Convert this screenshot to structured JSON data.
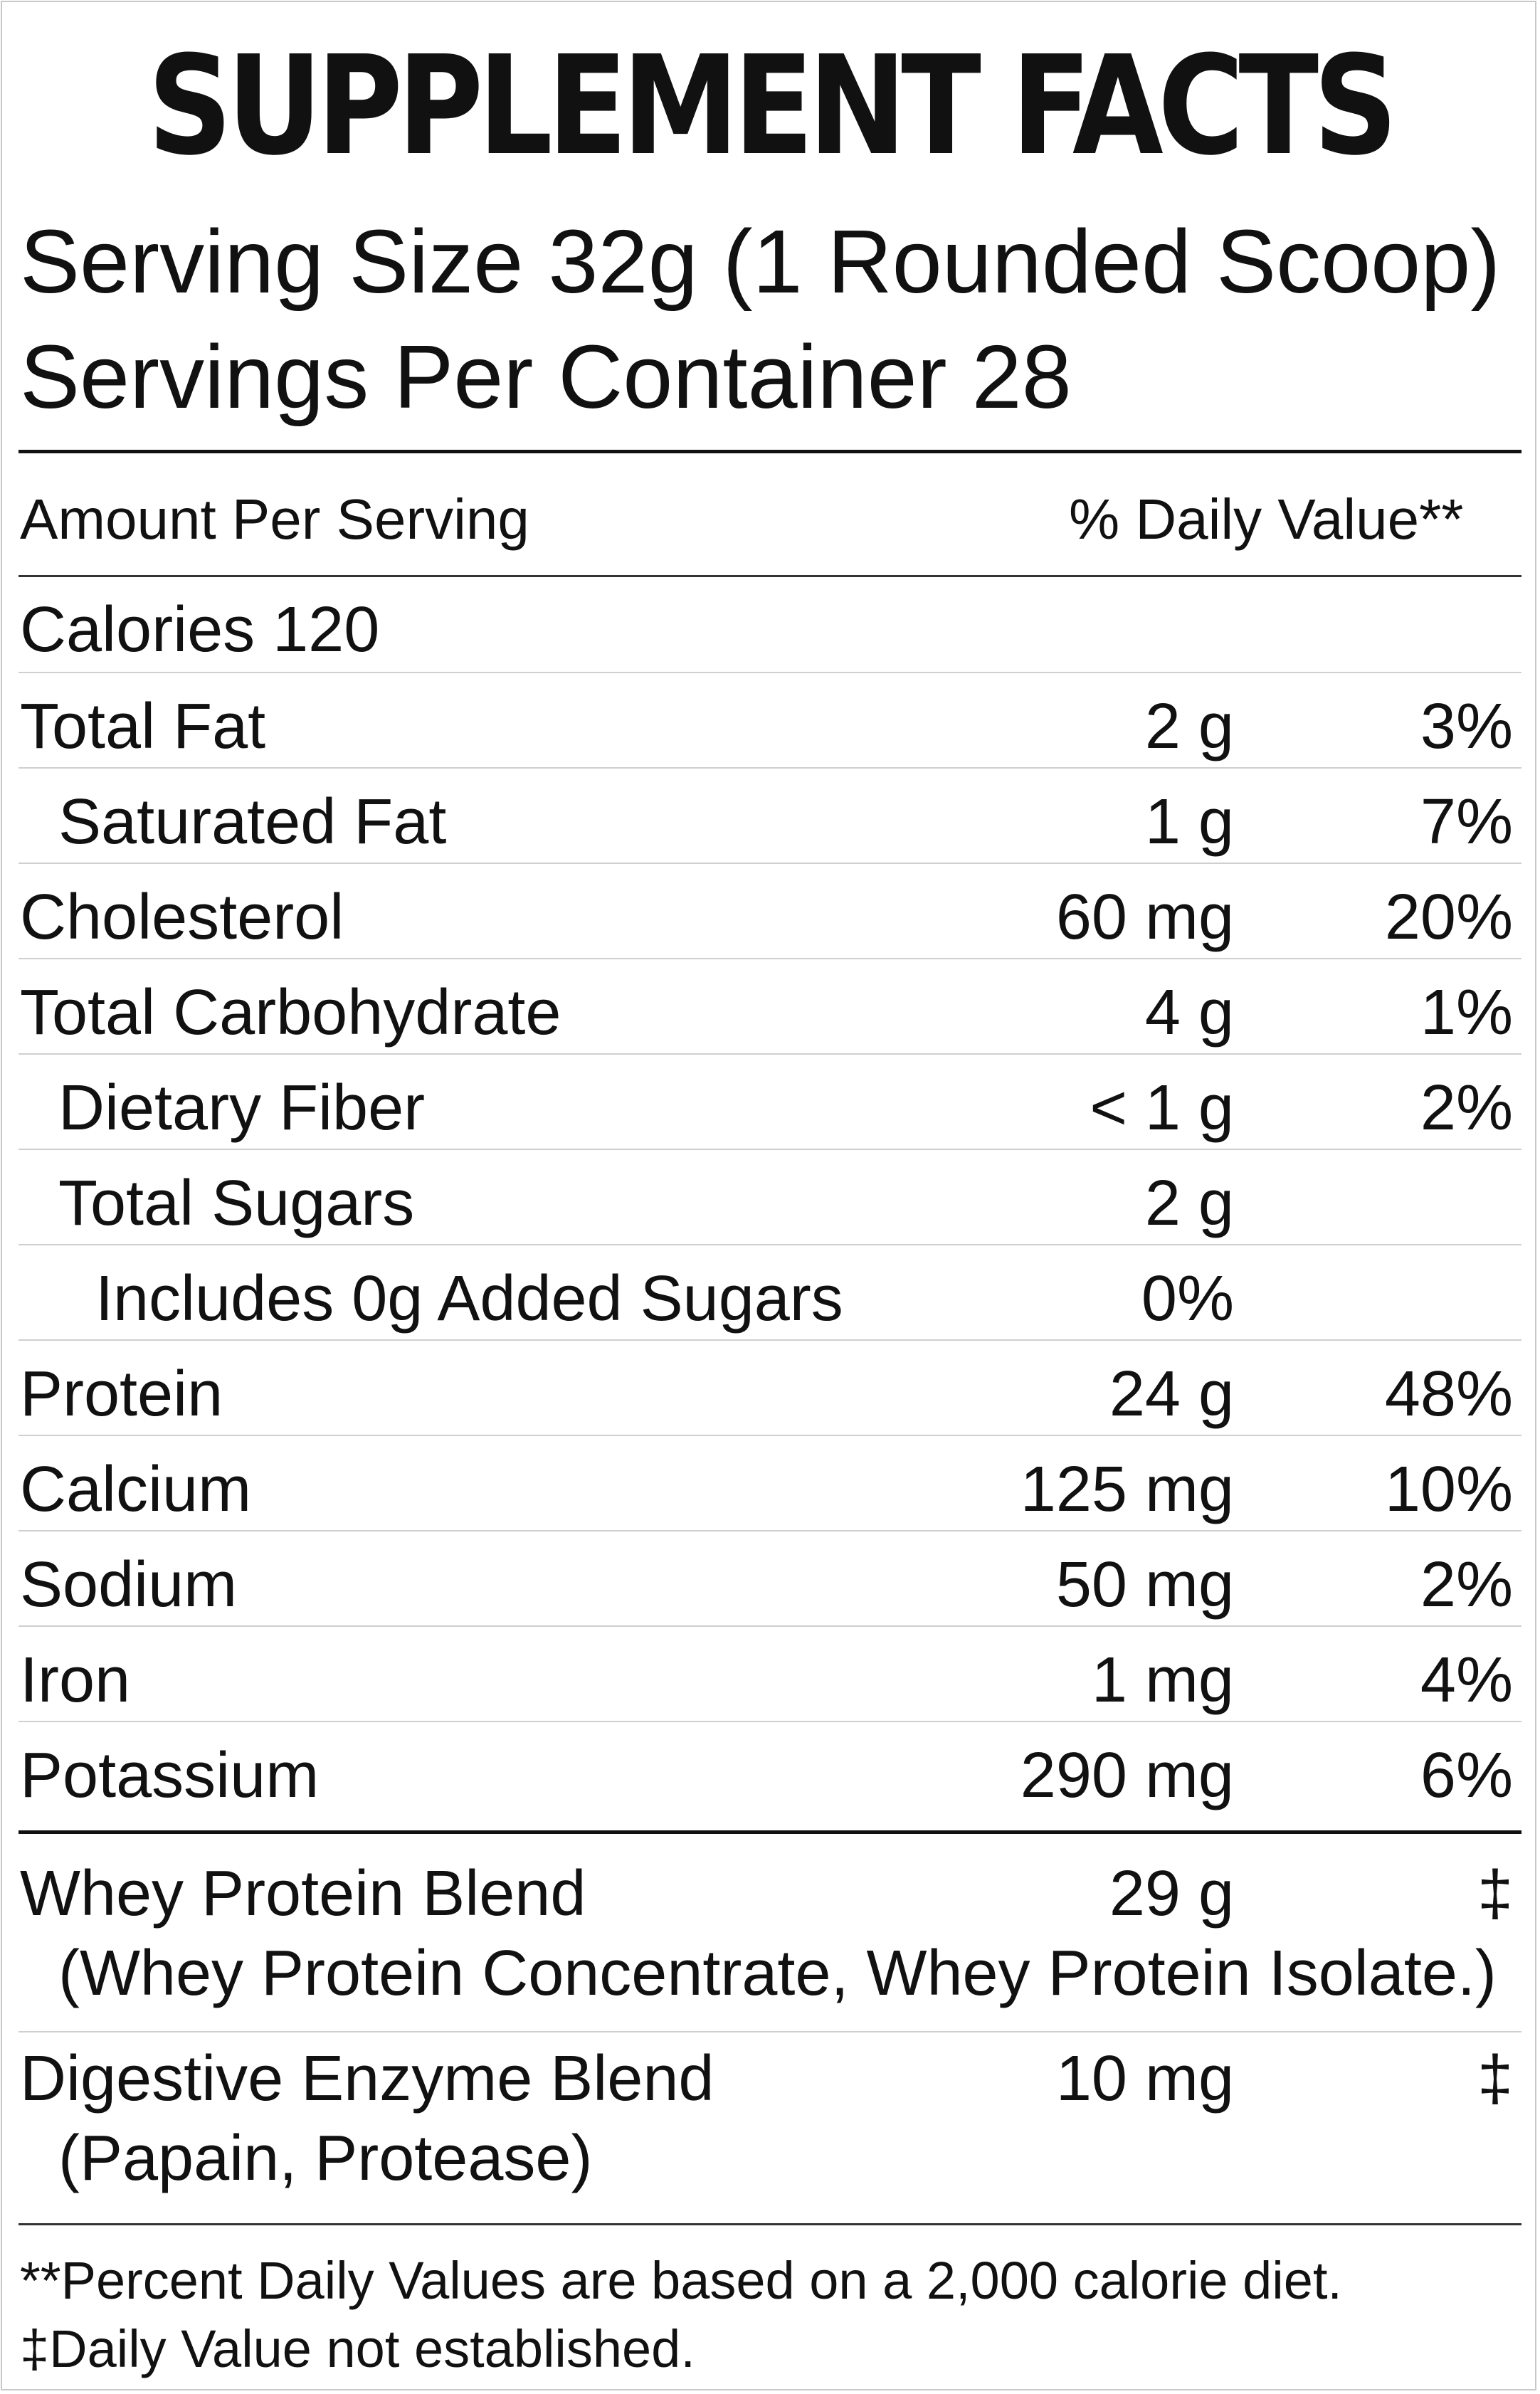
{
  "label": {
    "title": "SUPPLEMENT FACTS",
    "serving_size": "Serving Size 32g (1 Rounded Scoop)",
    "servings_per_container": "Servings Per Container  28",
    "amount_header": "Amount Per Serving",
    "dv_header": "% Daily Value**",
    "calories": "Calories  120",
    "nutrients": [
      {
        "name": "Total Fat",
        "amount": "2 g",
        "dv": "3%"
      },
      {
        "name": "Saturated Fat",
        "amount": "1 g",
        "dv": "7%"
      },
      {
        "name": "Cholesterol",
        "amount": "60 mg",
        "dv": "20%"
      },
      {
        "name": "Total Carbohydrate",
        "amount": "4 g",
        "dv": "1%"
      },
      {
        "name": "Dietary Fiber",
        "amount": "< 1 g",
        "dv": "2%"
      },
      {
        "name": "Total Sugars",
        "amount": "2 g",
        "dv": ""
      },
      {
        "name": "Includes 0g Added Sugars",
        "amount": "0%",
        "dv": ""
      },
      {
        "name": "Protein",
        "amount": "24 g",
        "dv": "48%"
      },
      {
        "name": "Calcium",
        "amount": "125 mg",
        "dv": "10%"
      },
      {
        "name": "Sodium",
        "amount": "50 mg",
        "dv": "2%"
      },
      {
        "name": "Iron",
        "amount": "1 mg",
        "dv": "4%"
      },
      {
        "name": "Potassium",
        "amount": "290 mg",
        "dv": "6%"
      }
    ],
    "blends": [
      {
        "name": "Whey Protein Blend",
        "amount": "29 g",
        "dv": "‡",
        "ingredients": "(Whey Protein Concentrate, Whey Protein Isolate.)"
      },
      {
        "name": "Digestive Enzyme Blend",
        "amount": "10 mg",
        "dv": "‡",
        "ingredients": "(Papain, Protease)"
      }
    ],
    "footnote_dv": "**Percent Daily Values are based on a 2,000 calorie diet.",
    "footnote_na": "‡Daily Value not established."
  }
}
